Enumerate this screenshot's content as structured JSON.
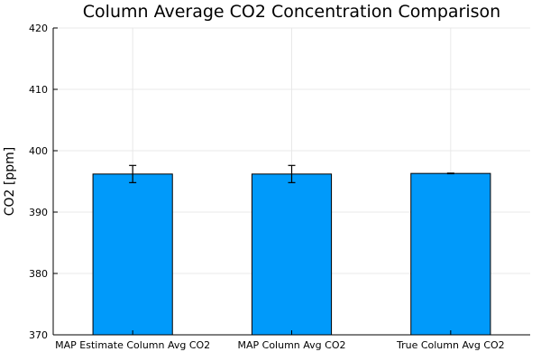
{
  "chart_data": {
    "type": "bar",
    "title": "Column Average CO2 Concentration Comparison",
    "xlabel": "",
    "ylabel": "CO2 [ppm]",
    "categories": [
      "MAP Estimate Column Avg CO2",
      "MAP Column Avg CO2",
      "True Column Avg CO2"
    ],
    "values": [
      396.2,
      396.2,
      396.3
    ],
    "errors": [
      1.4,
      1.4,
      0.05
    ],
    "ylim": [
      370,
      420
    ],
    "yticks": [
      370,
      380,
      390,
      400,
      410,
      420
    ],
    "grid": true,
    "legend": "none",
    "bar_color": "#009AFA"
  }
}
